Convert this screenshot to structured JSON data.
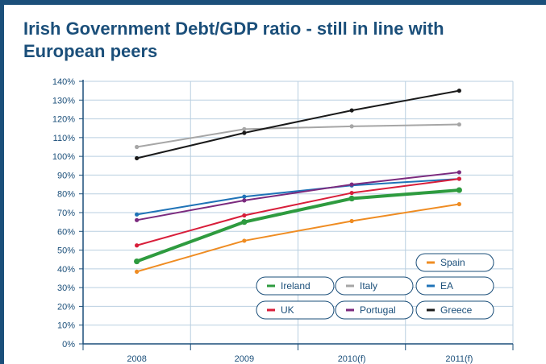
{
  "title": "Irish Government Debt/GDP ratio - still in line with European peers",
  "chart_data": {
    "type": "line",
    "title": "Irish Government Debt/GDP ratio - still in line with European peers",
    "xlabel": "",
    "ylabel": "",
    "categories": [
      "2008",
      "2009",
      "2010(f)",
      "2011(f)"
    ],
    "yticks": [
      "0%",
      "10%",
      "20%",
      "30%",
      "40%",
      "50%",
      "60%",
      "70%",
      "80%",
      "90%",
      "100%",
      "110%",
      "120%",
      "130%",
      "140%"
    ],
    "ylim": [
      0,
      140
    ],
    "grid": true,
    "legend_position": "bottom-right",
    "series": [
      {
        "name": "Ireland",
        "color": "#2e9b3f",
        "width": 4,
        "values": [
          44,
          65,
          77.5,
          82
        ]
      },
      {
        "name": "Italy",
        "color": "#a6a6a6",
        "width": 2,
        "values": [
          105,
          114.5,
          116,
          117
        ]
      },
      {
        "name": "EA",
        "color": "#1f73b7",
        "width": 2,
        "values": [
          69,
          78.5,
          84.5,
          88
        ]
      },
      {
        "name": "UK",
        "color": "#d81e3a",
        "width": 2,
        "values": [
          52.5,
          68.5,
          80.5,
          88
        ]
      },
      {
        "name": "Portugal",
        "color": "#7b2a7e",
        "width": 2,
        "values": [
          66,
          76.5,
          85,
          91.5
        ]
      },
      {
        "name": "Greece",
        "color": "#1a1a1a",
        "width": 2,
        "values": [
          99,
          112.5,
          124.5,
          135
        ]
      },
      {
        "name": "Spain",
        "color": "#ef8c22",
        "width": 2,
        "values": [
          38.5,
          55,
          65.5,
          74.5
        ]
      }
    ],
    "legend_rows": [
      [
        "Spain"
      ],
      [
        "Ireland",
        "Italy",
        "EA"
      ],
      [
        "UK",
        "Portugal",
        "Greece"
      ]
    ]
  }
}
